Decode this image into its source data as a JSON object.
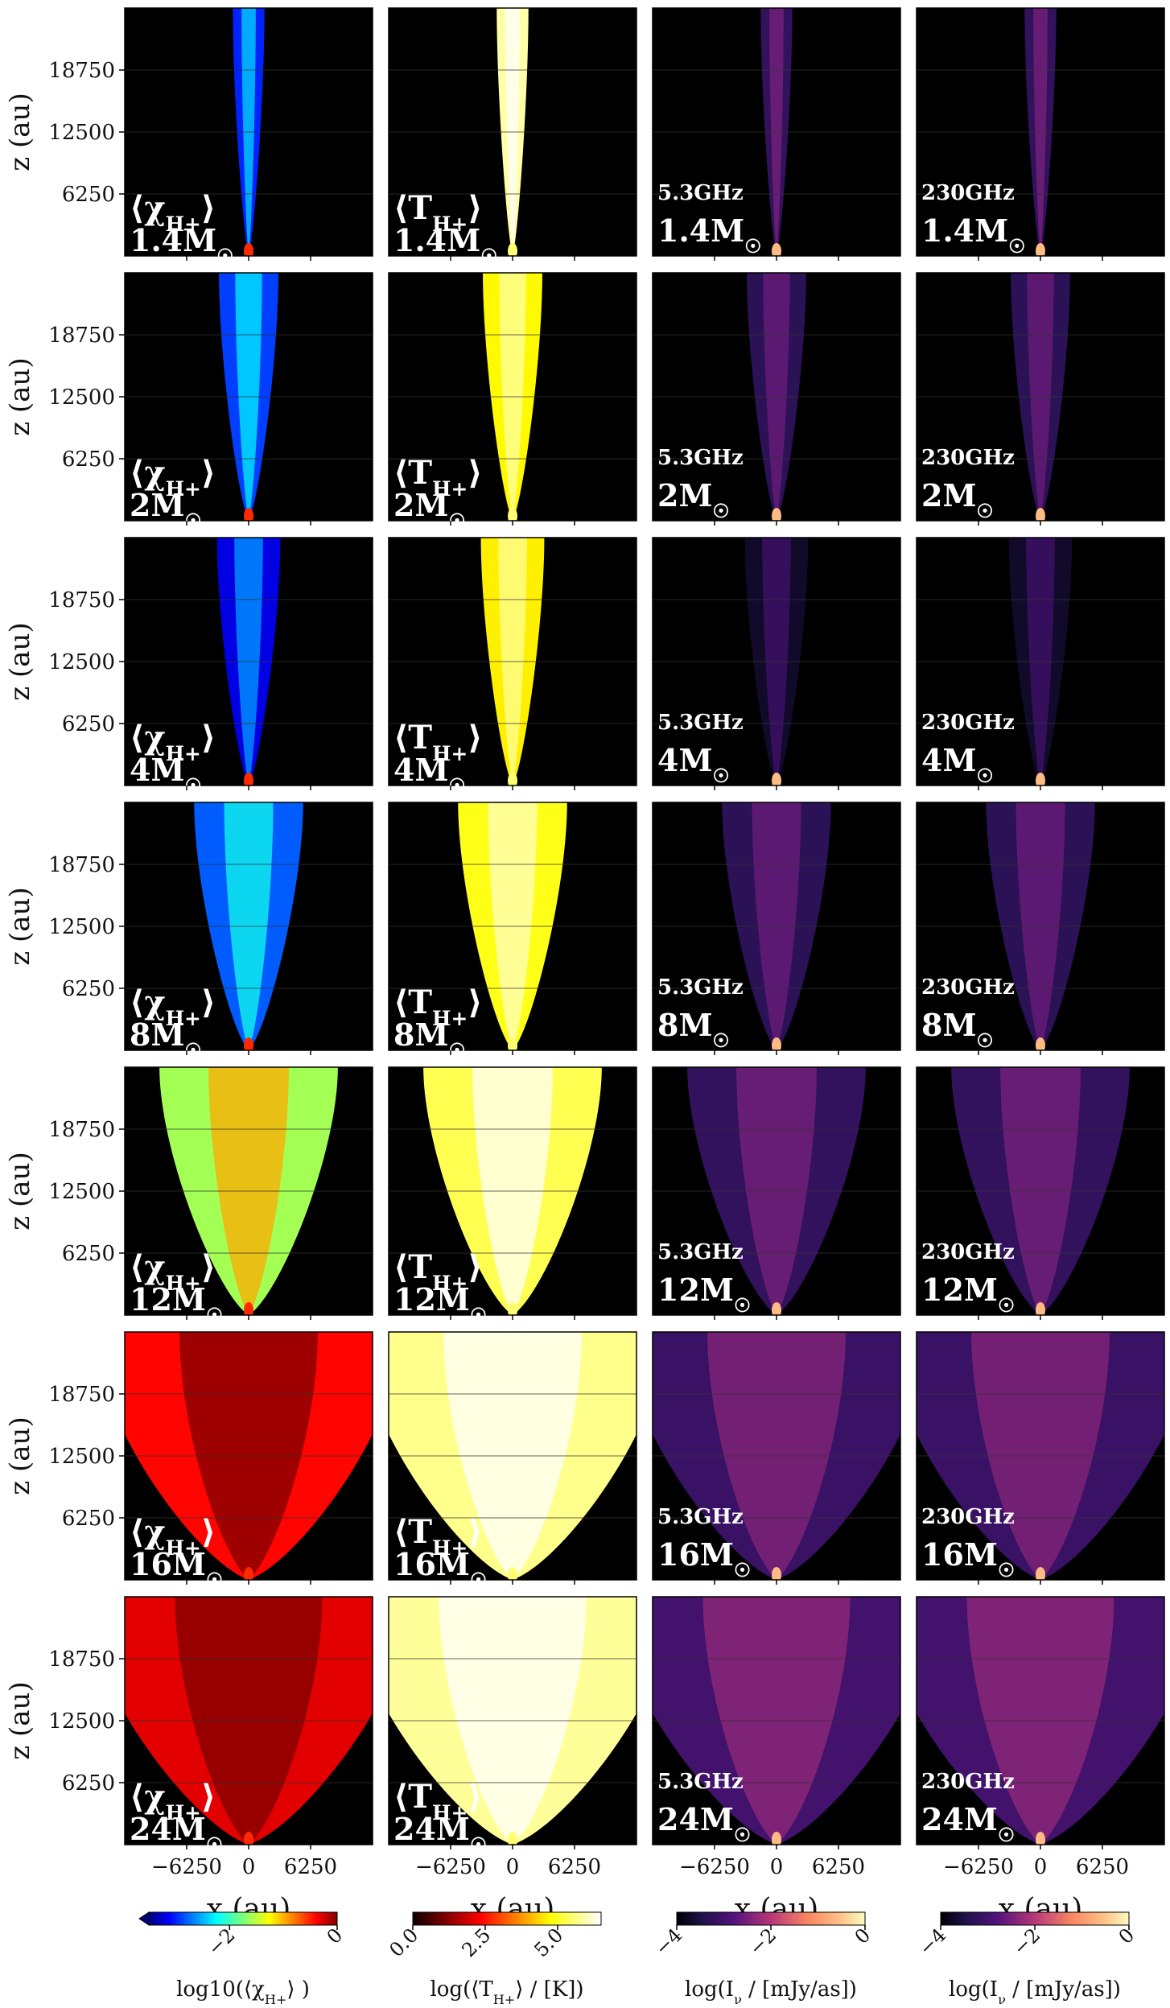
{
  "chart_data": {
    "type": "heatmap",
    "description_rows": "rows are stellar masses, columns are quantities",
    "masses": [
      "1.4",
      "2",
      "4",
      "8",
      "12",
      "16",
      "24"
    ],
    "mass_unit": "M",
    "sun_symbol": "☉",
    "opening_half_width_au": [
      1600,
      3000,
      3200,
      5500,
      9000,
      15500,
      16500
    ],
    "columns": [
      {
        "key": "chi",
        "panel_label": "⟨χ",
        "panel_label_sub": "H+",
        "panel_label_close": "⟩",
        "colorbar": {
          "colormap": "jet",
          "range": [
            -3.5,
            0
          ],
          "ticks": [
            -2,
            0
          ],
          "tick_labels": [
            "−2",
            "0"
          ],
          "extend": "min",
          "label": "log10(⟨χ",
          "label_sub": "H+",
          "label_close": "⟩ )"
        },
        "typical_log_value": [
          -3.0,
          -2.9,
          -3.2,
          -2.8,
          -1.6,
          -0.4,
          -0.3
        ]
      },
      {
        "key": "temp",
        "panel_label": "⟨T",
        "panel_label_sub": "H+",
        "panel_label_close": "⟩",
        "colorbar": {
          "colormap": "hot",
          "range": [
            0,
            6.5
          ],
          "ticks": [
            0.0,
            2.5,
            5.0
          ],
          "tick_labels": [
            "0.0",
            "2.5",
            "5.0"
          ],
          "extend": "none",
          "label": "log(⟨T",
          "label_sub": "H+",
          "label_close": "⟩ / [K])"
        },
        "typical_log_value": [
          5.9,
          4.7,
          4.6,
          4.9,
          5.3,
          5.7,
          5.8
        ]
      },
      {
        "key": "i53",
        "frequency_label": "5.3GHz",
        "colorbar": {
          "colormap": "plasma",
          "range": [
            -4,
            0
          ],
          "ticks": [
            -4,
            -2,
            0
          ],
          "tick_labels": [
            "−4",
            "−2",
            "0"
          ],
          "extend": "none",
          "label": "log(I",
          "label_sub": "ν",
          "label_close": " / [mJy/as])"
        },
        "typical_log_value": [
          -3.2,
          -3.3,
          -3.7,
          -3.3,
          -3.2,
          -3.1,
          -3.0
        ]
      },
      {
        "key": "i230",
        "frequency_label": "230GHz",
        "colorbar": {
          "colormap": "plasma",
          "range": [
            -4,
            0
          ],
          "ticks": [
            -4,
            -2,
            0
          ],
          "tick_labels": [
            "−4",
            "−2",
            "0"
          ],
          "extend": "none",
          "label": "log(I",
          "label_sub": "ν",
          "label_close": " / [mJy/as])"
        },
        "typical_log_value": [
          -3.2,
          -3.3,
          -3.7,
          -3.3,
          -3.2,
          -3.1,
          -3.0
        ]
      }
    ],
    "x_axis": {
      "label": "x (au)",
      "range": [
        -12500,
        12500
      ],
      "ticks": [
        -6250,
        0,
        6250
      ],
      "tick_labels": [
        "−6250",
        "0",
        "6250"
      ]
    },
    "y_axis": {
      "label": "z (au)",
      "range": [
        0,
        25000
      ],
      "ticks": [
        6250,
        12500,
        18750
      ],
      "tick_labels": [
        "6250",
        "12500",
        "18750"
      ]
    }
  }
}
